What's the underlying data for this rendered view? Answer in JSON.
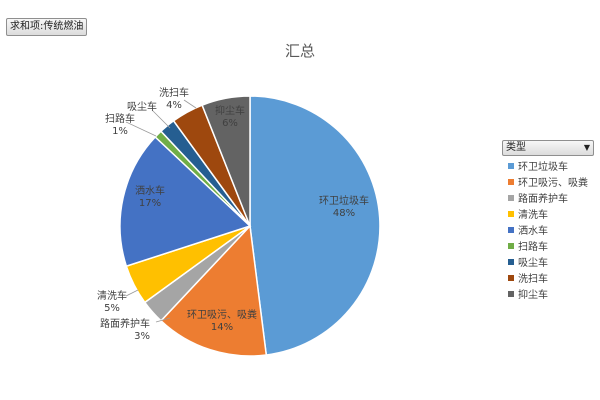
{
  "field_button": {
    "label": "求和项:传统燃油"
  },
  "legend": {
    "header": "类型"
  },
  "chart_data": {
    "type": "pie",
    "title": "汇总",
    "legend_position": "right",
    "slices": [
      {
        "label": "环卫垃圾车",
        "value": 48,
        "pct_label": "48%",
        "color": "#5b9bd5"
      },
      {
        "label": "环卫吸污、吸粪",
        "value": 14,
        "pct_label": "14%",
        "color": "#ed7d31"
      },
      {
        "label": "路面养护车",
        "value": 3,
        "pct_label": "3%",
        "color": "#a5a5a5"
      },
      {
        "label": "清洗车",
        "value": 5,
        "pct_label": "5%",
        "color": "#ffc000"
      },
      {
        "label": "洒水车",
        "value": 17,
        "pct_label": "17%",
        "color": "#4472c4"
      },
      {
        "label": "扫路车",
        "value": 1,
        "pct_label": "1%",
        "color": "#70ad47"
      },
      {
        "label": "吸尘车",
        "value": 2,
        "pct_label": "",
        "color": "#255e91"
      },
      {
        "label": "洗扫车",
        "value": 4,
        "pct_label": "4%",
        "color": "#9e480e"
      },
      {
        "label": "抑尘车",
        "value": 6,
        "pct_label": "6%",
        "color": "#636363"
      }
    ]
  }
}
